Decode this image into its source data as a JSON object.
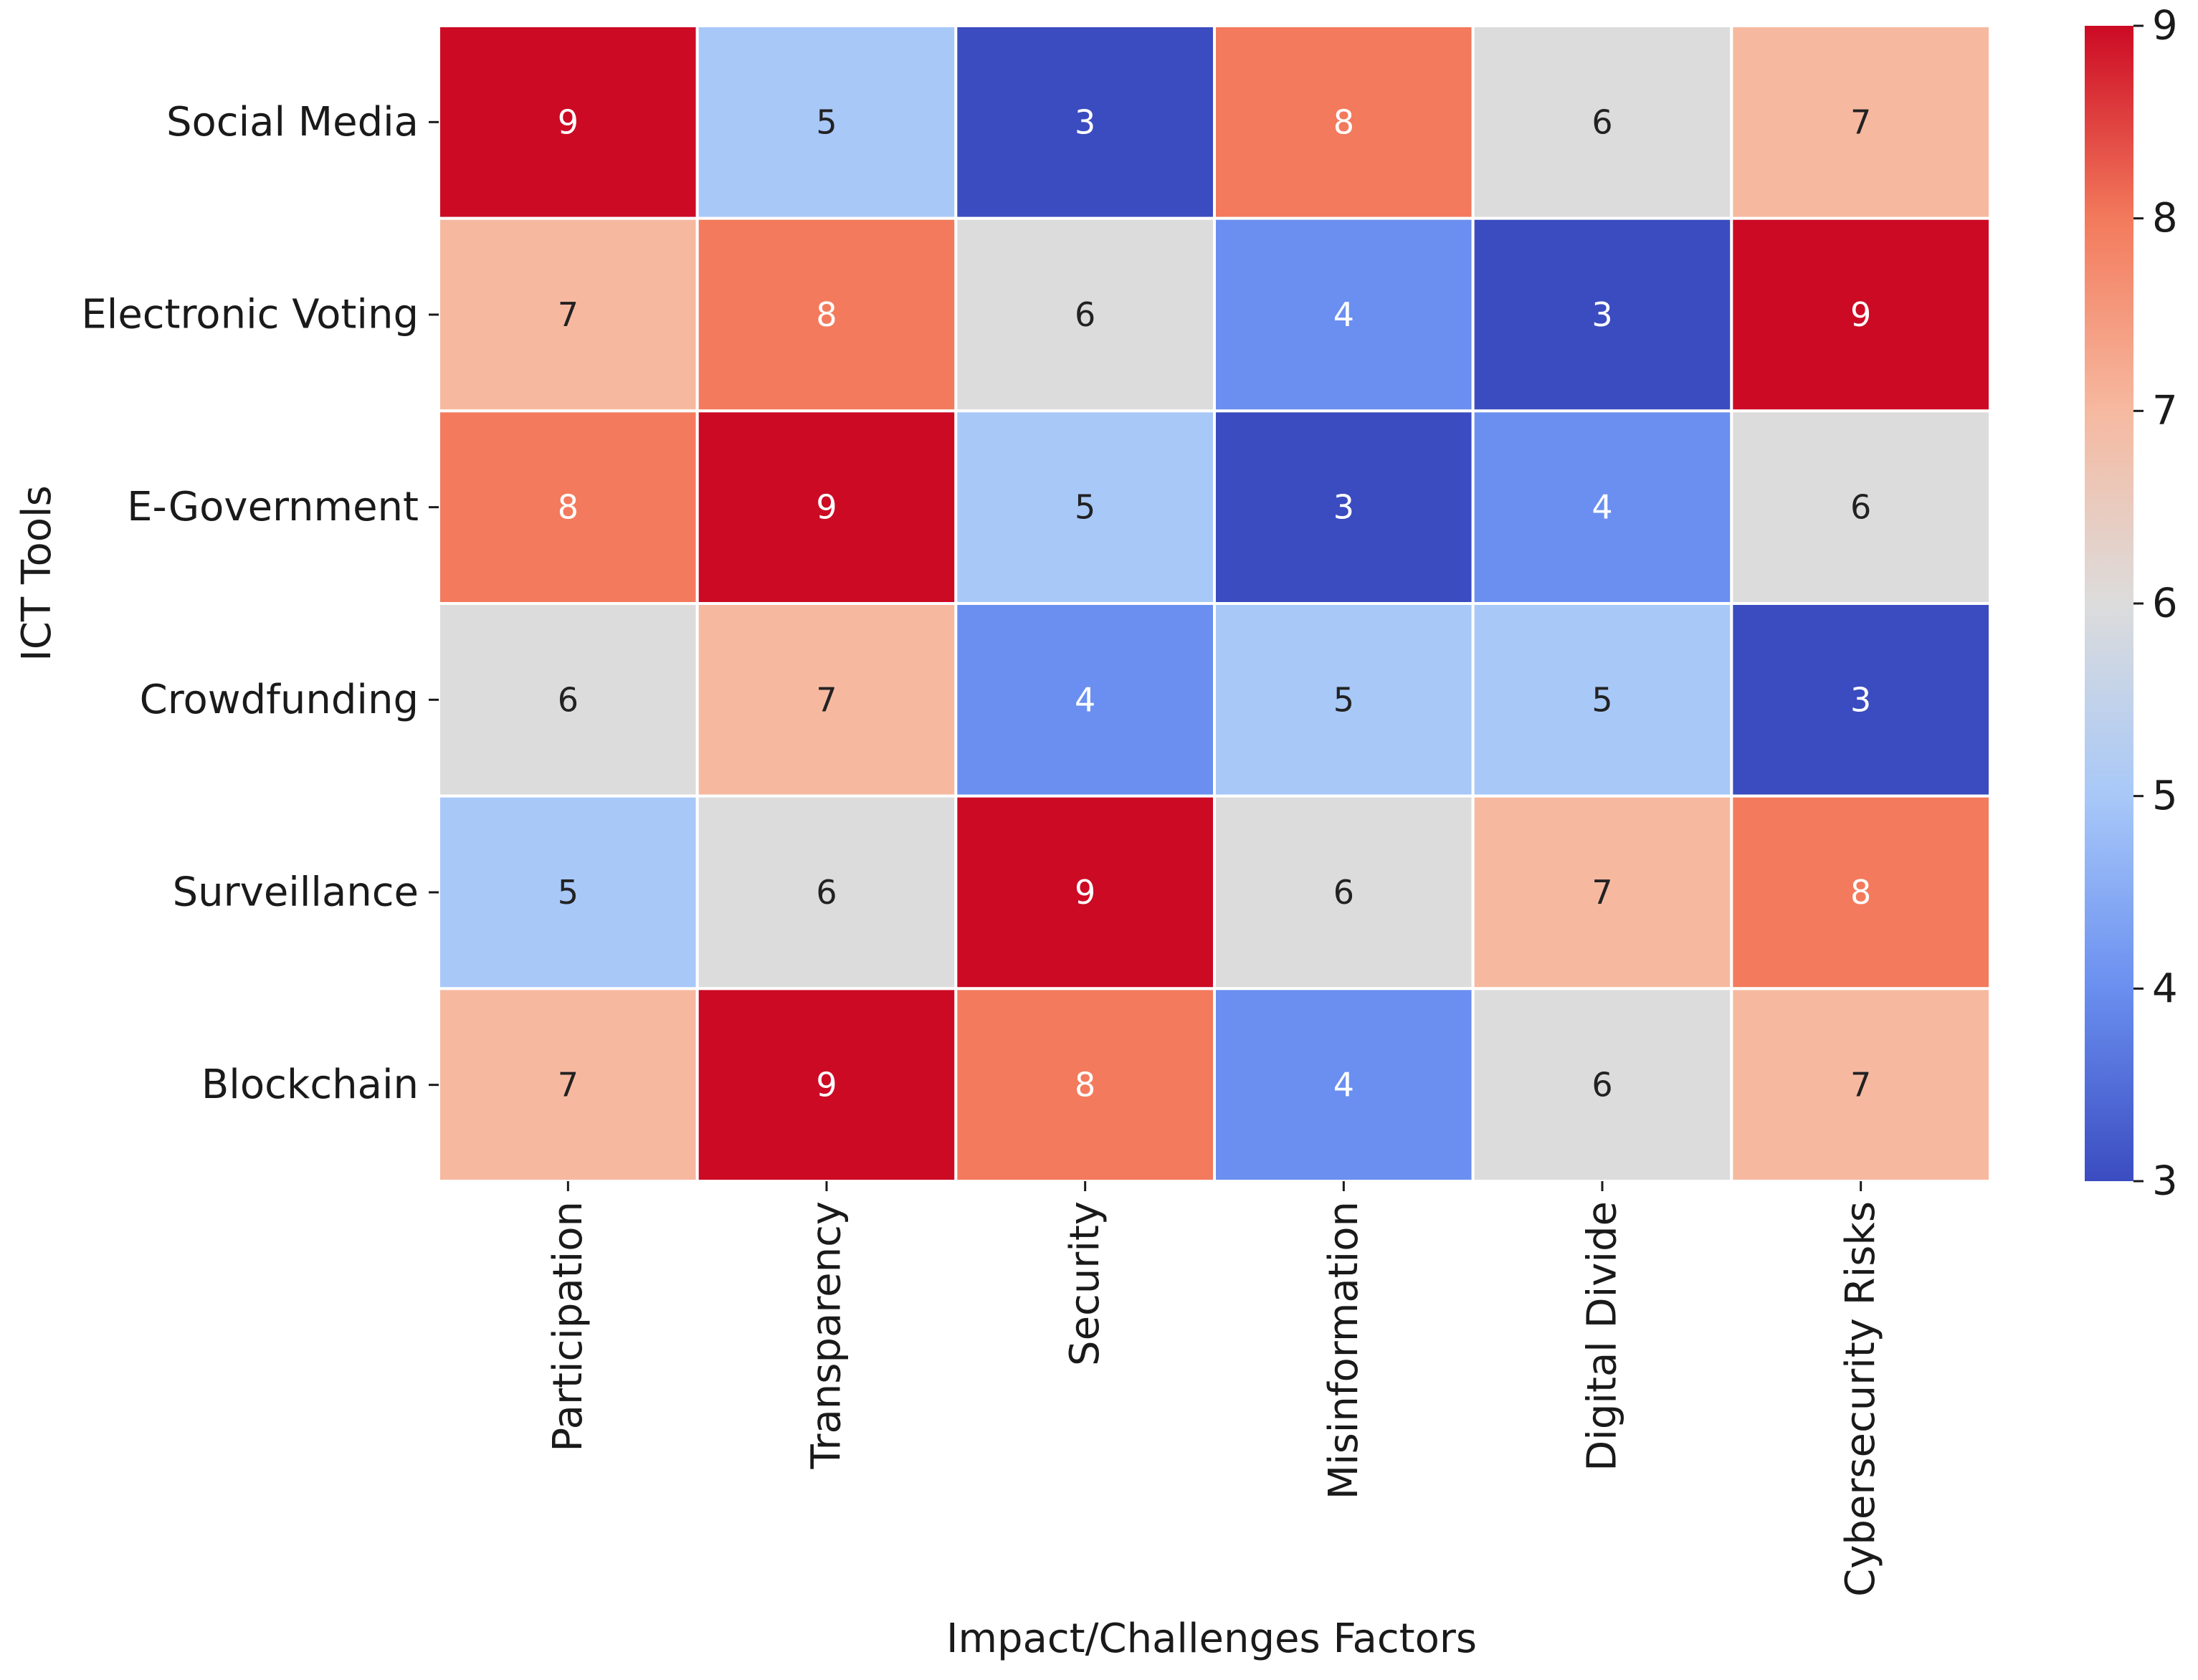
{
  "chart_data": {
    "type": "heatmap",
    "title": "",
    "xlabel": "Impact/Challenges Factors",
    "ylabel": "ICT Tools",
    "columns": [
      "Participation",
      "Transparency",
      "Security",
      "Misinformation",
      "Digital Divide",
      "Cybersecurity Risks"
    ],
    "rows": [
      "Social Media",
      "Electronic Voting",
      "E-Government",
      "Crowdfunding",
      "Surveillance",
      "Blockchain"
    ],
    "values": [
      [
        9,
        5,
        3,
        8,
        6,
        7
      ],
      [
        7,
        8,
        6,
        4,
        3,
        9
      ],
      [
        8,
        9,
        5,
        3,
        4,
        6
      ],
      [
        6,
        7,
        4,
        5,
        5,
        3
      ],
      [
        5,
        6,
        9,
        6,
        7,
        8
      ],
      [
        7,
        9,
        8,
        4,
        6,
        7
      ]
    ],
    "colormap": "coolwarm",
    "vmin": 3,
    "vmax": 9,
    "colorbar_ticks": [
      3,
      4,
      5,
      6,
      7,
      8,
      9
    ],
    "annotations": true,
    "colors": {
      "3": "#3b4cc0",
      "4": "#6a8ff0",
      "5": "#a8c8f8",
      "6": "#dcdcdc",
      "7": "#f6b9a0",
      "8": "#f37a5c",
      "9": "#cc0a24",
      "grid_line": "#ffffff",
      "text_dark": "#222222",
      "text_light": "#ffffff"
    }
  }
}
